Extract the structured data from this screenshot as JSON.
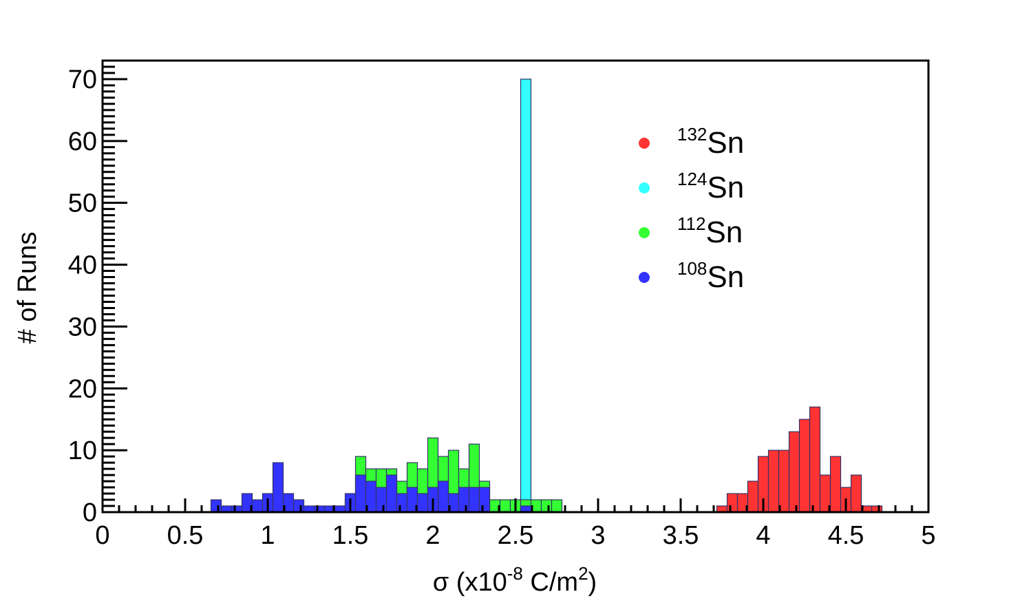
{
  "chart_data": {
    "type": "bar",
    "subtype": "histogram",
    "xlabel": {
      "symbol": "σ",
      "prefix": " (x10",
      "exponent": "-8",
      "unit": " C/m",
      "unit_exponent": "2",
      "suffix": ")"
    },
    "ylabel": "# of Runs",
    "xlim": [
      0,
      5
    ],
    "ylim": [
      0,
      73
    ],
    "bin_width": 0.0625,
    "x_ticks": [
      "0",
      "0.5",
      "1",
      "1.5",
      "2",
      "2.5",
      "3",
      "3.5",
      "4",
      "4.5",
      "5"
    ],
    "y_ticks": [
      "0",
      "10",
      "20",
      "30",
      "40",
      "50",
      "60",
      "70"
    ],
    "grid": false,
    "legend_position": "top-right",
    "series": [
      {
        "name": "Sn",
        "mass": "132",
        "color": "#ff3333",
        "x": [
          3.75,
          3.8125,
          3.875,
          3.9375,
          4.0,
          4.0625,
          4.125,
          4.1875,
          4.25,
          4.3125,
          4.375,
          4.4375,
          4.5,
          4.5625,
          4.625,
          4.6875,
          4.75
        ],
        "values": [
          1,
          3,
          3,
          5,
          9,
          10,
          10,
          13,
          15,
          17,
          6,
          9,
          4,
          6,
          1,
          1,
          0
        ]
      },
      {
        "name": "Sn",
        "mass": "124",
        "color": "#33ffff",
        "x": [
          2.5625
        ],
        "values": [
          70
        ]
      },
      {
        "name": "Sn",
        "mass": "112",
        "color": "#33ff33",
        "x": [
          1.4375,
          1.5,
          1.5625,
          1.625,
          1.6875,
          1.75,
          1.8125,
          1.875,
          1.9375,
          2.0,
          2.0625,
          2.125,
          2.1875,
          2.25,
          2.3125,
          2.375,
          2.4375,
          2.5,
          2.5625,
          2.625,
          2.6875,
          2.75
        ],
        "values": [
          1,
          2,
          9,
          7,
          7,
          7,
          5,
          8,
          7,
          12,
          9,
          10,
          7,
          11,
          5,
          2,
          2,
          2,
          2,
          2,
          2,
          2
        ]
      },
      {
        "name": "Sn",
        "mass": "108",
        "color": "#3333ff",
        "x": [
          0.6875,
          0.75,
          0.8125,
          0.875,
          0.9375,
          1.0,
          1.0625,
          1.125,
          1.1875,
          1.25,
          1.3125,
          1.375,
          1.4375,
          1.5,
          1.5625,
          1.625,
          1.6875,
          1.75,
          1.8125,
          1.875,
          1.9375,
          2.0,
          2.0625,
          2.125,
          2.1875,
          2.25,
          2.3125,
          2.375,
          2.4375,
          2.5,
          2.5625
        ],
        "values": [
          2,
          1,
          1,
          3,
          2,
          3,
          8,
          3,
          2,
          1,
          1,
          1,
          1,
          3,
          6,
          5,
          4,
          6,
          3,
          4,
          3,
          4,
          5,
          3,
          4,
          4,
          4,
          0,
          0,
          0,
          1
        ]
      }
    ]
  }
}
